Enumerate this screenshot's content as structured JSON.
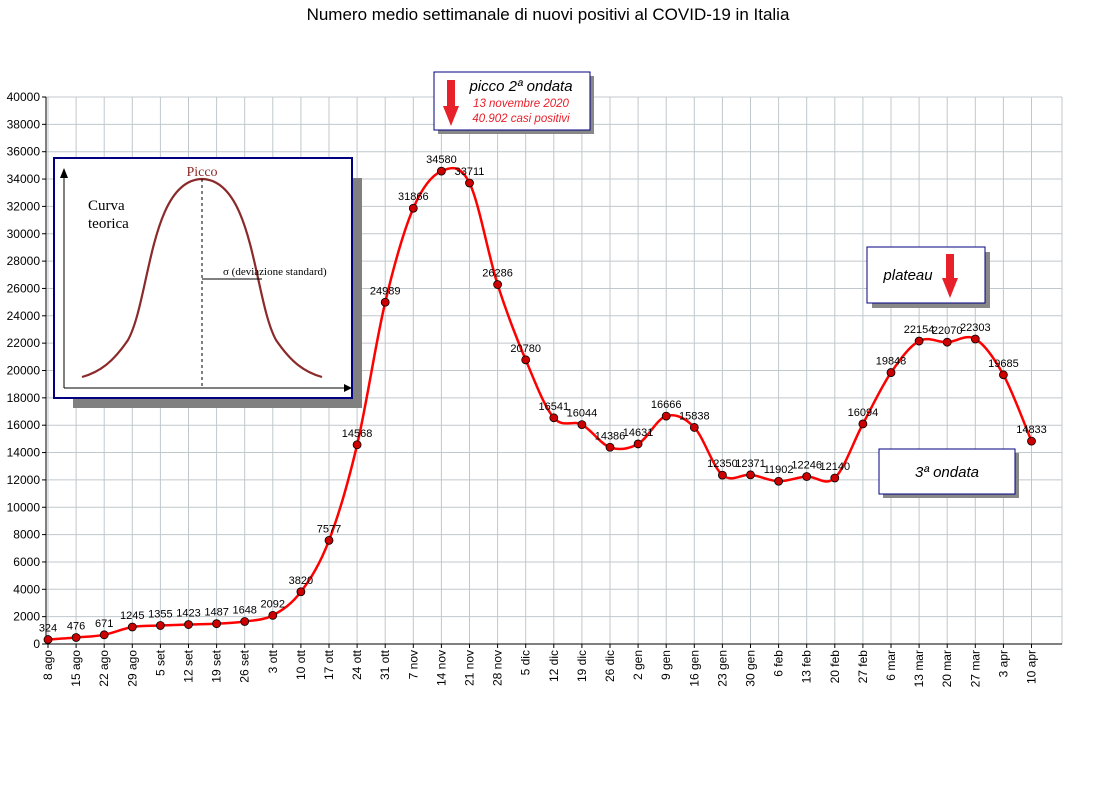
{
  "chart_data": {
    "type": "line",
    "title": "Numero medio settimanale di nuovi positivi al COVID-19 in Italia",
    "xlabel": "",
    "ylabel": "",
    "ylim": [
      0,
      40000
    ],
    "ytick_step": 2000,
    "grid": true,
    "series_color": "#ff0000",
    "marker_color": "#cc0000",
    "categories": [
      "8 ago",
      "15 ago",
      "22 ago",
      "29 ago",
      "5 set",
      "12 set",
      "19 set",
      "26 set",
      "3 ott",
      "10 ott",
      "17 ott",
      "24 ott",
      "31 ott",
      "7 nov",
      "14 nov",
      "21 nov",
      "28 nov",
      "5 dic",
      "12 dic",
      "19 dic",
      "26 dic",
      "2 gen",
      "9 gen",
      "16 gen",
      "23 gen",
      "30 gen",
      "6 feb",
      "13 feb",
      "20 feb",
      "27 feb",
      "6 mar",
      "13 mar",
      "20 mar",
      "27 mar",
      "3 apr",
      "10 apr"
    ],
    "values": [
      324,
      476,
      671,
      1245,
      1355,
      1423,
      1487,
      1648,
      2092,
      3820,
      7577,
      14568,
      24989,
      31866,
      34580,
      33711,
      26286,
      20780,
      16541,
      16044,
      14386,
      14631,
      16666,
      15838,
      12350,
      12371,
      11902,
      12246,
      12140,
      16094,
      19848,
      22154,
      22070,
      22303,
      19685,
      14833
    ],
    "annotations": {
      "peak2": {
        "title": "picco 2ª ondata",
        "line1": "13 novembre 2020",
        "line2": "40.902 casi positivi",
        "color": "#e8202a"
      },
      "plateau": {
        "label": "plateau"
      },
      "wave3": {
        "label": "3ª ondata"
      }
    },
    "inset": {
      "peak_label": "Picco",
      "curve_label_1": "Curva",
      "curve_label_2": "teorica",
      "sigma_label": "σ  (deviazione standard)"
    }
  }
}
